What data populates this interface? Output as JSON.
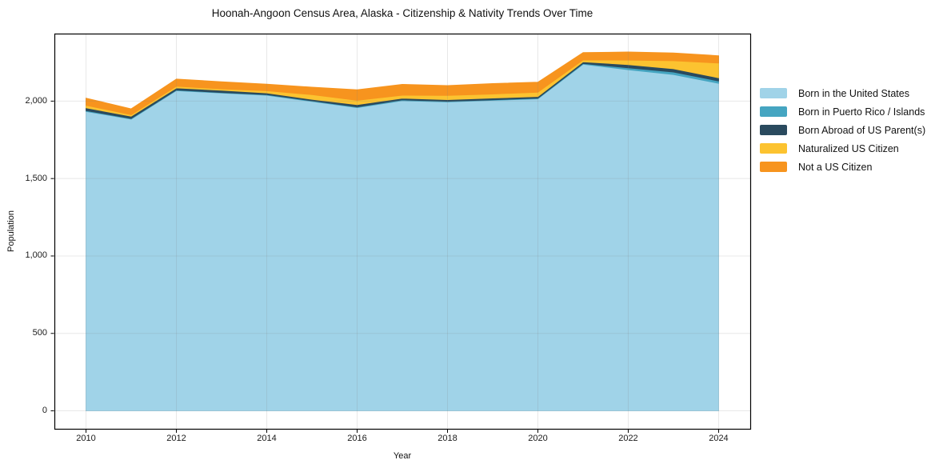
{
  "figure": {
    "title": "Hoonah-Angoon Census Area, Alaska - Citizenship & Nativity Trends Over Time",
    "xlabel": "Year",
    "ylabel": "Population"
  },
  "chart_data": {
    "type": "area",
    "stacked": true,
    "title": "Hoonah-Angoon Census Area, Alaska - Citizenship & Nativity Trends Over Time",
    "xlabel": "Year",
    "ylabel": "Population",
    "x": [
      2010,
      2011,
      2012,
      2013,
      2014,
      2015,
      2016,
      2017,
      2018,
      2019,
      2020,
      2021,
      2022,
      2023,
      2024
    ],
    "series": [
      {
        "name": "Born in the United States",
        "color": "#a0d3e8",
        "values": [
          1934,
          1884,
          2068,
          2052,
          2038,
          1998,
          1958,
          2003,
          1995,
          2005,
          2015,
          2238,
          2203,
          2172,
          2115
        ]
      },
      {
        "name": "Born in Puerto Rico / Islands",
        "color": "#45a5c1",
        "values": [
          5,
          4,
          4,
          4,
          4,
          4,
          5,
          5,
          4,
          4,
          4,
          5,
          12,
          16,
          15
        ]
      },
      {
        "name": "Born Abroad of US Parent(s)",
        "color": "#2a4a5e",
        "values": [
          18,
          15,
          13,
          14,
          11,
          10,
          15,
          11,
          11,
          11,
          11,
          11,
          21,
          21,
          21
        ]
      },
      {
        "name": "Naturalized US Citizen",
        "color": "#fcc330",
        "values": [
          16,
          9,
          11,
          9,
          14,
          30,
          27,
          19,
          27,
          26,
          28,
          12,
          29,
          52,
          95
        ]
      },
      {
        "name": "Not a US Citizen",
        "color": "#f7941e",
        "values": [
          46,
          38,
          46,
          46,
          42,
          48,
          68,
          70,
          63,
          67,
          64,
          47,
          52,
          50,
          47
        ]
      }
    ],
    "xlim": [
      2009.3,
      2024.7
    ],
    "ylim": [
      -116,
      2436
    ],
    "x_ticks": [
      {
        "v": 2010,
        "label": "2010"
      },
      {
        "v": 2012,
        "label": "2012"
      },
      {
        "v": 2014,
        "label": "2014"
      },
      {
        "v": 2016,
        "label": "2016"
      },
      {
        "v": 2018,
        "label": "2018"
      },
      {
        "v": 2020,
        "label": "2020"
      },
      {
        "v": 2022,
        "label": "2022"
      },
      {
        "v": 2024,
        "label": "2024"
      }
    ],
    "y_ticks": [
      {
        "v": 0,
        "label": "0"
      },
      {
        "v": 500,
        "label": "500"
      },
      {
        "v": 1000,
        "label": "1,000"
      },
      {
        "v": 1500,
        "label": "1,500"
      },
      {
        "v": 2000,
        "label": "2,000"
      }
    ],
    "grid": true,
    "legend_position": "right"
  },
  "colors": {
    "grid": "rgba(130,130,130,0.18)",
    "spine": "#000000",
    "tick": "#000000"
  }
}
